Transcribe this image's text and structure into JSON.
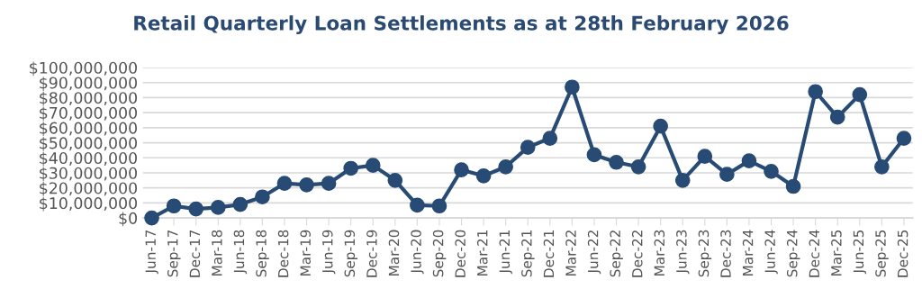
{
  "chart_data": {
    "type": "line",
    "title": "Retail Quarterly Loan Settlements as at 28th February 2026",
    "categories": [
      "Jun-17",
      "Sep-17",
      "Dec-17",
      "Mar-18",
      "Jun-18",
      "Sep-18",
      "Dec-18",
      "Mar-19",
      "Jun-19",
      "Sep-19",
      "Dec-19",
      "Mar-20",
      "Jun-20",
      "Sep-20",
      "Dec-20",
      "Mar-21",
      "Jun-21",
      "Sep-21",
      "Dec-21",
      "Mar-22",
      "Jun-22",
      "Sep-22",
      "Dec-22",
      "Mar-23",
      "Jun-23",
      "Sep-23",
      "Dec-23",
      "Mar-24",
      "Jun-24",
      "Sep-24",
      "Dec-24",
      "Mar-25",
      "Jun-25",
      "Sep-25",
      "Dec-25"
    ],
    "series": [
      {
        "color": "#274b74",
        "values": [
          0,
          8000000,
          6000000,
          7000000,
          9000000,
          14000000,
          23000000,
          22000000,
          23000000,
          33000000,
          35000000,
          25000000,
          8500000,
          8000000,
          32000000,
          28000000,
          34000000,
          47000000,
          53000000,
          87000000,
          42000000,
          37000000,
          34000000,
          61000000,
          25000000,
          41000000,
          29000000,
          38000000,
          31000000,
          21000000,
          84000000,
          67000000,
          82000000,
          34000000,
          53000000
        ]
      }
    ],
    "ylim": [
      0,
      100000000
    ],
    "yticks": [
      {
        "value": 0,
        "label": "$0"
      },
      {
        "value": 10000000,
        "label": "$10,000,000"
      },
      {
        "value": 20000000,
        "label": "$20,000,000"
      },
      {
        "value": 30000000,
        "label": "$30,000,000"
      },
      {
        "value": 40000000,
        "label": "$40,000,000"
      },
      {
        "value": 50000000,
        "label": "$50,000,000"
      },
      {
        "value": 60000000,
        "label": "$60,000,000"
      },
      {
        "value": 70000000,
        "label": "$70,000,000"
      },
      {
        "value": 80000000,
        "label": "$80,000,000"
      },
      {
        "value": 90000000,
        "label": "$90,000,000"
      },
      {
        "value": 100000000,
        "label": "$100,000,000"
      }
    ],
    "grid": "y",
    "marker": "circle",
    "line_style": "solid"
  }
}
